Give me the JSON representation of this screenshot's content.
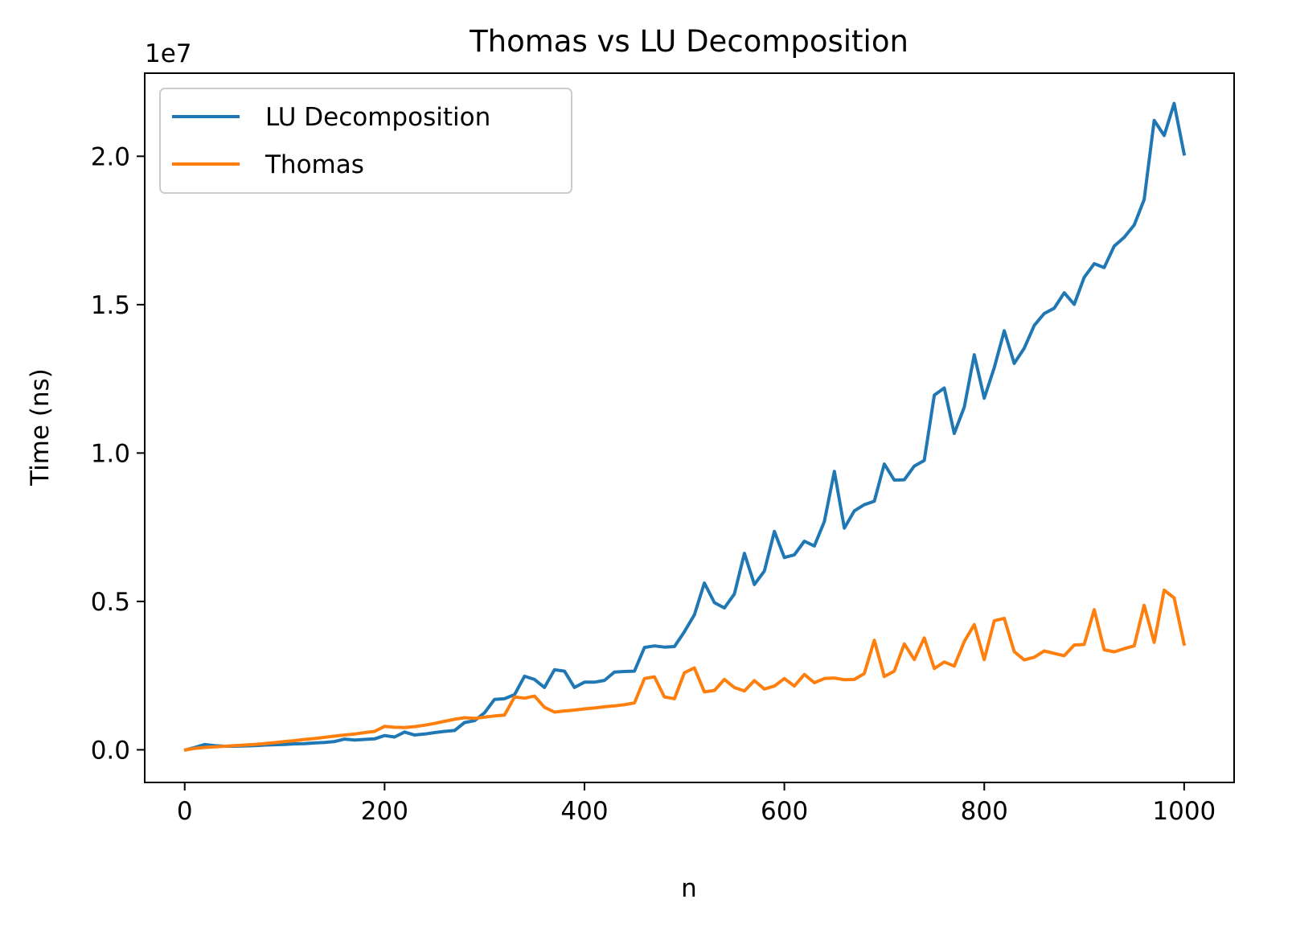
{
  "chart_data": {
    "type": "line",
    "title": "Thomas vs LU Decomposition",
    "xlabel": "n",
    "ylabel": "Time (ns)",
    "y_offset_text": "1e7",
    "xlim": [
      -40,
      1050
    ],
    "ylim": [
      -0.11,
      2.28
    ],
    "y_scale_note": "values in units of 1e7 ns",
    "x_ticks": [
      0,
      200,
      400,
      600,
      800,
      1000
    ],
    "x_tick_labels": [
      "0",
      "200",
      "400",
      "600",
      "800",
      "1000"
    ],
    "y_ticks": [
      0.0,
      0.5,
      1.0,
      1.5,
      2.0
    ],
    "y_tick_labels": [
      "0.0",
      "0.5",
      "1.0",
      "1.5",
      "2.0"
    ],
    "grid": false,
    "legend_position": "top-left",
    "x": [
      1,
      10,
      20,
      30,
      40,
      50,
      60,
      70,
      80,
      90,
      100,
      110,
      120,
      130,
      140,
      150,
      160,
      170,
      180,
      190,
      200,
      210,
      220,
      230,
      240,
      250,
      260,
      270,
      280,
      290,
      300,
      310,
      320,
      330,
      340,
      350,
      360,
      370,
      380,
      390,
      400,
      410,
      420,
      430,
      440,
      450,
      460,
      470,
      480,
      490,
      500,
      510,
      520,
      530,
      540,
      550,
      560,
      570,
      580,
      590,
      600,
      610,
      620,
      630,
      640,
      650,
      660,
      670,
      680,
      690,
      700,
      710,
      720,
      730,
      740,
      750,
      760,
      770,
      780,
      790,
      800,
      810,
      820,
      830,
      840,
      850,
      860,
      870,
      880,
      890,
      900,
      910,
      920,
      930,
      940,
      950,
      960,
      970,
      980,
      990,
      1000
    ],
    "series": [
      {
        "name": "LU Decomposition",
        "color": "#1f77b4",
        "values": [
          0.0,
          0.008,
          0.018,
          0.014,
          0.012,
          0.012,
          0.013,
          0.014,
          0.016,
          0.017,
          0.018,
          0.02,
          0.021,
          0.023,
          0.025,
          0.028,
          0.036,
          0.033,
          0.035,
          0.037,
          0.048,
          0.043,
          0.06,
          0.05,
          0.053,
          0.058,
          0.062,
          0.065,
          0.092,
          0.098,
          0.125,
          0.17,
          0.172,
          0.186,
          0.248,
          0.237,
          0.21,
          0.27,
          0.265,
          0.21,
          0.228,
          0.228,
          0.234,
          0.262,
          0.264,
          0.265,
          0.345,
          0.35,
          0.346,
          0.348,
          0.398,
          0.455,
          0.562,
          0.496,
          0.478,
          0.525,
          0.662,
          0.557,
          0.602,
          0.736,
          0.648,
          0.657,
          0.703,
          0.687,
          0.769,
          0.938,
          0.747,
          0.805,
          0.826,
          0.838,
          0.963,
          0.909,
          0.91,
          0.956,
          0.975,
          1.195,
          1.219,
          1.066,
          1.155,
          1.331,
          1.185,
          1.288,
          1.412,
          1.302,
          1.353,
          1.43,
          1.47,
          1.488,
          1.54,
          1.501,
          1.592,
          1.638,
          1.625,
          1.697,
          1.727,
          1.768,
          1.854,
          2.121,
          2.07,
          2.178,
          2.008
        ]
      },
      {
        "name": "Thomas",
        "color": "#ff7f0e",
        "values": [
          0.0,
          0.005,
          0.008,
          0.01,
          0.012,
          0.014,
          0.016,
          0.018,
          0.021,
          0.024,
          0.028,
          0.031,
          0.035,
          0.038,
          0.042,
          0.046,
          0.05,
          0.053,
          0.058,
          0.062,
          0.079,
          0.076,
          0.075,
          0.078,
          0.083,
          0.089,
          0.096,
          0.103,
          0.108,
          0.106,
          0.11,
          0.114,
          0.117,
          0.178,
          0.174,
          0.181,
          0.143,
          0.127,
          0.131,
          0.134,
          0.138,
          0.141,
          0.145,
          0.148,
          0.152,
          0.158,
          0.24,
          0.246,
          0.178,
          0.172,
          0.26,
          0.276,
          0.195,
          0.2,
          0.237,
          0.21,
          0.198,
          0.233,
          0.205,
          0.215,
          0.24,
          0.215,
          0.254,
          0.226,
          0.24,
          0.242,
          0.236,
          0.237,
          0.257,
          0.369,
          0.247,
          0.265,
          0.357,
          0.304,
          0.377,
          0.274,
          0.296,
          0.282,
          0.365,
          0.422,
          0.304,
          0.435,
          0.443,
          0.331,
          0.303,
          0.312,
          0.333,
          0.325,
          0.317,
          0.353,
          0.355,
          0.472,
          0.337,
          0.33,
          0.341,
          0.35,
          0.487,
          0.362,
          0.538,
          0.512,
          0.356
        ]
      }
    ]
  }
}
